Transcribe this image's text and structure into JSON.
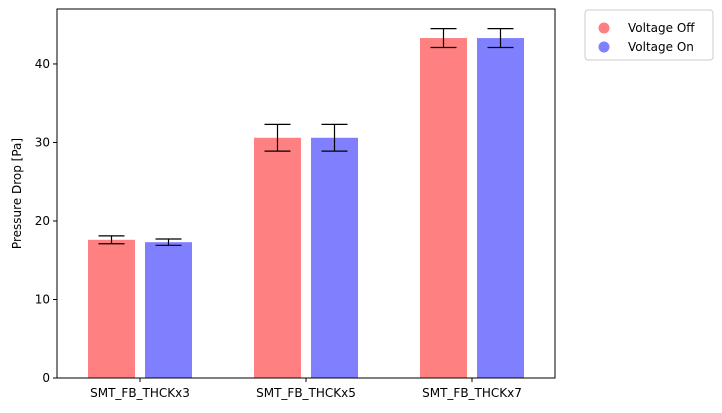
{
  "chart_data": {
    "type": "bar",
    "title": "",
    "xlabel": "",
    "ylabel": "Pressure Drop [Pa]",
    "ylim": [
      0,
      47
    ],
    "yticks": [
      0,
      10,
      20,
      30,
      40
    ],
    "grid": false,
    "legend_position": "outside-top-right",
    "categories": [
      "SMT_FB_THCKx3",
      "SMT_FB_THCKx5",
      "SMT_FB_THCKx7"
    ],
    "series": [
      {
        "name": "Voltage Off",
        "color": "#ff8080",
        "values": [
          17.6,
          30.6,
          43.3
        ],
        "errors": [
          0.5,
          1.7,
          1.2
        ]
      },
      {
        "name": "Voltage On",
        "color": "#8080ff",
        "values": [
          17.3,
          30.6,
          43.3
        ],
        "errors": [
          0.4,
          1.7,
          1.2
        ]
      }
    ]
  }
}
